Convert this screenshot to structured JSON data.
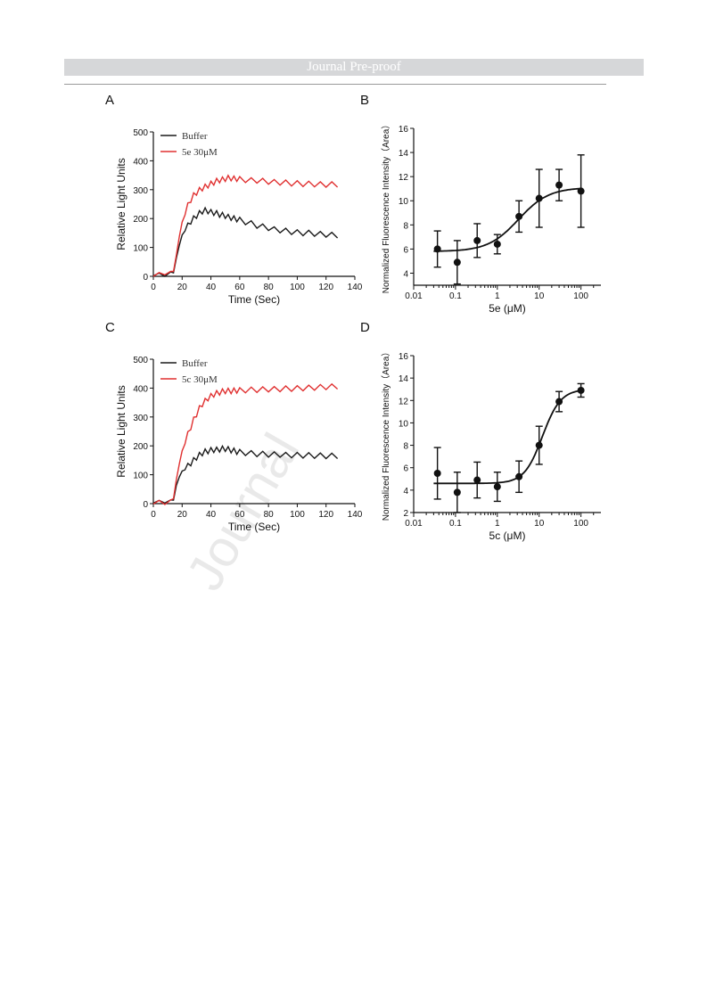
{
  "header": {
    "title": "Journal Pre-proof"
  },
  "watermark": {
    "text": "Journal"
  },
  "panels": [
    {
      "label": "A"
    },
    {
      "label": "B"
    },
    {
      "label": "C"
    },
    {
      "label": "D"
    }
  ],
  "chart_data": [
    {
      "panel": "A",
      "type": "line",
      "xlabel": "Time (Sec)",
      "ylabel": "Relative Light Units",
      "xlim": [
        0,
        140
      ],
      "ylim": [
        0,
        500
      ],
      "xticks": [
        0,
        20,
        40,
        60,
        80,
        100,
        120,
        140
      ],
      "yticks": [
        0,
        100,
        200,
        300,
        400,
        500
      ],
      "legend": "top-left",
      "series": [
        {
          "name": "Buffer",
          "color": "#1a1a1a",
          "x": [
            0,
            4,
            8,
            12,
            14,
            16,
            18,
            20,
            22,
            24,
            26,
            28,
            30,
            32,
            34,
            36,
            38,
            40,
            42,
            44,
            46,
            48,
            50,
            52,
            54,
            56,
            58,
            60,
            64,
            68,
            72,
            76,
            80,
            84,
            88,
            92,
            96,
            100,
            104,
            108,
            112,
            116,
            120,
            124,
            128
          ],
          "y": [
            5,
            8,
            3,
            12,
            15,
            60,
            110,
            140,
            160,
            175,
            190,
            200,
            210,
            218,
            225,
            228,
            226,
            222,
            220,
            218,
            214,
            212,
            210,
            205,
            203,
            200,
            198,
            195,
            188,
            183,
            176,
            172,
            168,
            162,
            160,
            157,
            154,
            152,
            150,
            150,
            148,
            146,
            145,
            143,
            142
          ]
        },
        {
          "name": "5e 30μM",
          "color": "#e03030",
          "x": [
            0,
            4,
            8,
            12,
            14,
            16,
            18,
            20,
            22,
            24,
            26,
            28,
            30,
            32,
            34,
            36,
            38,
            40,
            42,
            44,
            46,
            48,
            50,
            52,
            54,
            56,
            58,
            60,
            64,
            68,
            72,
            76,
            80,
            84,
            88,
            92,
            96,
            100,
            104,
            108,
            112,
            116,
            120,
            124,
            128
          ],
          "y": [
            3,
            10,
            8,
            14,
            20,
            70,
            140,
            185,
            215,
            245,
            265,
            280,
            290,
            298,
            305,
            310,
            315,
            320,
            325,
            330,
            333,
            335,
            338,
            340,
            340,
            338,
            338,
            336,
            334,
            332,
            332,
            330,
            328,
            326,
            325,
            324,
            322,
            322,
            320,
            320,
            319,
            318,
            318,
            318,
            318
          ]
        }
      ]
    },
    {
      "panel": "B",
      "type": "scatter",
      "xlabel": "5e (μM)",
      "ylabel": "Normalized Fluorescence Intensity（Area）",
      "xscale": "log",
      "xlim": [
        0.01,
        300
      ],
      "ylim": [
        3,
        16
      ],
      "xticks": [
        0.01,
        0.1,
        1,
        10,
        100
      ],
      "xticklabels": [
        "0.01",
        "0.1",
        "1",
        "10",
        "100"
      ],
      "yticks": [
        4,
        6,
        8,
        10,
        12,
        14,
        16
      ],
      "points": [
        {
          "x": 0.037,
          "y": 6.0,
          "err": 1.5
        },
        {
          "x": 0.11,
          "y": 4.9,
          "err": 1.8
        },
        {
          "x": 0.33,
          "y": 6.7,
          "err": 1.4
        },
        {
          "x": 1.0,
          "y": 6.4,
          "err": 0.8
        },
        {
          "x": 3.3,
          "y": 8.7,
          "err": 1.3
        },
        {
          "x": 10,
          "y": 10.2,
          "err": 2.4
        },
        {
          "x": 30,
          "y": 11.3,
          "err": 1.3
        },
        {
          "x": 100,
          "y": 10.8,
          "err": 3.0
        }
      ],
      "fit": {
        "bottom": 5.8,
        "top": 11.1,
        "ec50": 3.2,
        "hill": 1.2,
        "xrange": [
          0.03,
          100
        ]
      }
    },
    {
      "panel": "C",
      "type": "line",
      "xlabel": "Time (Sec)",
      "ylabel": "Relative Light Units",
      "xlim": [
        0,
        140
      ],
      "ylim": [
        0,
        500
      ],
      "xticks": [
        0,
        20,
        40,
        60,
        80,
        100,
        120,
        140
      ],
      "yticks": [
        0,
        100,
        200,
        300,
        400,
        500
      ],
      "legend": "top-left",
      "series": [
        {
          "name": "Buffer",
          "color": "#1a1a1a",
          "x": [
            0,
            4,
            8,
            12,
            14,
            16,
            18,
            20,
            22,
            24,
            26,
            28,
            30,
            32,
            34,
            36,
            38,
            40,
            42,
            44,
            46,
            48,
            50,
            52,
            54,
            56,
            58,
            60,
            64,
            68,
            72,
            76,
            80,
            84,
            88,
            92,
            96,
            100,
            104,
            108,
            112,
            116,
            120,
            124,
            128
          ],
          "y": [
            5,
            8,
            5,
            10,
            15,
            60,
            95,
            110,
            120,
            130,
            140,
            150,
            160,
            168,
            175,
            180,
            182,
            185,
            186,
            186,
            188,
            190,
            190,
            188,
            185,
            183,
            180,
            178,
            176,
            174,
            172,
            172,
            170,
            170,
            170,
            168,
            168,
            168,
            167,
            167,
            166,
            166,
            165,
            165,
            165
          ]
        },
        {
          "name": "5c 30μM",
          "color": "#e03030",
          "x": [
            0,
            4,
            8,
            12,
            14,
            16,
            18,
            20,
            22,
            24,
            26,
            28,
            30,
            32,
            34,
            36,
            38,
            40,
            42,
            44,
            46,
            48,
            50,
            52,
            54,
            56,
            58,
            60,
            64,
            68,
            72,
            76,
            80,
            84,
            88,
            92,
            96,
            100,
            104,
            108,
            112,
            116,
            120,
            124,
            128
          ],
          "y": [
            2,
            8,
            0,
            10,
            20,
            80,
            140,
            180,
            210,
            240,
            265,
            290,
            310,
            330,
            345,
            355,
            365,
            372,
            378,
            382,
            385,
            388,
            390,
            390,
            390,
            391,
            392,
            392,
            393,
            394,
            394,
            395,
            396,
            396,
            397,
            398,
            398,
            399,
            400,
            401,
            402,
            403,
            404,
            405,
            406
          ]
        }
      ]
    },
    {
      "panel": "D",
      "type": "scatter",
      "xlabel": "5c (μM)",
      "ylabel": "Normalized Fluorescence Intensity（Area）",
      "xscale": "log",
      "xlim": [
        0.01,
        300
      ],
      "ylim": [
        2,
        16
      ],
      "xticks": [
        0.01,
        0.1,
        1,
        10,
        100
      ],
      "xticklabels": [
        "0.01",
        "0.1",
        "1",
        "10",
        "100"
      ],
      "yticks": [
        2,
        4,
        6,
        8,
        10,
        12,
        14,
        16
      ],
      "points": [
        {
          "x": 0.037,
          "y": 5.5,
          "err": 2.3
        },
        {
          "x": 0.11,
          "y": 3.8,
          "err": 1.8
        },
        {
          "x": 0.33,
          "y": 4.9,
          "err": 1.6
        },
        {
          "x": 1.0,
          "y": 4.3,
          "err": 1.3
        },
        {
          "x": 3.3,
          "y": 5.2,
          "err": 1.4
        },
        {
          "x": 10,
          "y": 8.0,
          "err": 1.7
        },
        {
          "x": 30,
          "y": 11.9,
          "err": 0.9
        },
        {
          "x": 100,
          "y": 12.9,
          "err": 0.6
        }
      ],
      "fit": {
        "bottom": 4.6,
        "top": 13.0,
        "ec50": 12,
        "hill": 2.0,
        "xrange": [
          0.03,
          100
        ]
      }
    }
  ]
}
